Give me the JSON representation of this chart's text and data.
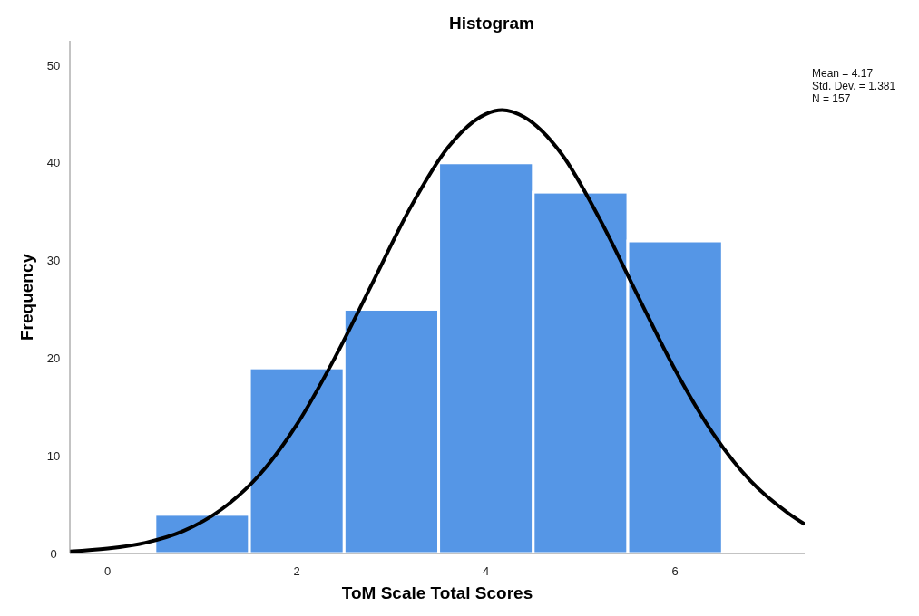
{
  "chart_data": {
    "type": "histogram",
    "title": "Histogram",
    "xlabel": "ToM Scale Total Scores",
    "ylabel": "Frequency",
    "bins": [
      0.5,
      1.5,
      2.5,
      3.5,
      4.5,
      5.5,
      6.5
    ],
    "series": [
      {
        "color": "#5596e6",
        "values": [
          4,
          19,
          25,
          40,
          37,
          32
        ]
      },
      {
        "type": "line",
        "color": "#000000",
        "x": [
          -0.4,
          0,
          0.4,
          0.8,
          1.2,
          1.6,
          2,
          2.4,
          2.8,
          3.2,
          3.6,
          4,
          4.17,
          4.4,
          4.8,
          5.2,
          5.6,
          6,
          6.4,
          6.8,
          7.2,
          7.37
        ],
        "values": [
          0.2,
          0.5,
          1.1,
          2.3,
          4.5,
          8,
          13.2,
          20,
          27.7,
          35.4,
          41.6,
          45,
          45.4,
          44.7,
          40.9,
          34.3,
          26.5,
          18.8,
          12.3,
          7.4,
          4.1,
          3
        ]
      }
    ],
    "xlim": [
      -0.4,
      7.37
    ],
    "xticks": [
      0,
      2,
      4,
      6
    ],
    "ylim": [
      0,
      52.5
    ],
    "yticks": [
      0,
      10,
      20,
      30,
      40,
      50
    ],
    "grid": false,
    "annotations": [
      "Mean = 4.17",
      "Std. Dev. = 1.381",
      "N = 157"
    ]
  }
}
